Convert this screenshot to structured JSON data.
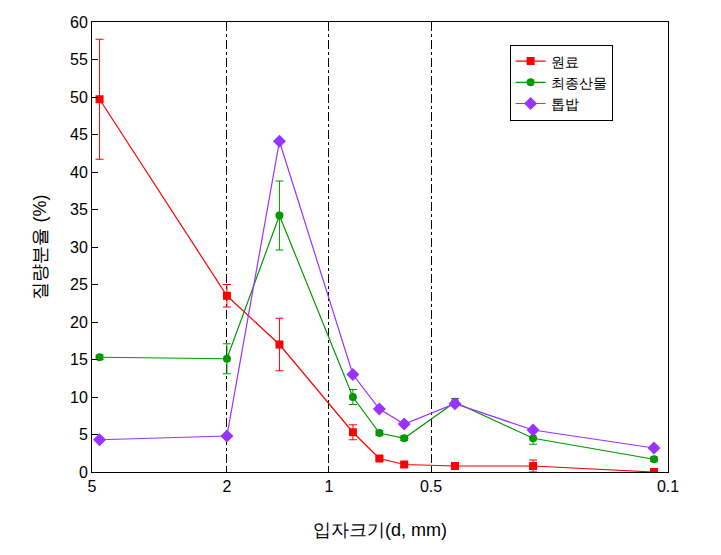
{
  "chart_data": {
    "type": "line",
    "x_label": "입자크기(d, mm)",
    "y_label": "질량분율 (%)",
    "log": "x",
    "x": [
      4.75,
      2.0,
      1.4,
      0.85,
      0.71,
      0.6,
      0.425,
      0.25,
      0.11
    ],
    "xlim": [
      5,
      0.1
    ],
    "xticks": [
      5,
      2,
      1,
      0.5,
      0.1
    ],
    "ylim": [
      0,
      60
    ],
    "yticks": [
      0,
      5,
      10,
      15,
      20,
      25,
      30,
      35,
      40,
      45,
      50,
      55,
      60
    ],
    "grid": "x",
    "legend": "top-right",
    "series": [
      {
        "name": "원료",
        "color": "#ff0000",
        "marker": "square",
        "values": [
          49.7,
          23.5,
          17.0,
          5.3,
          1.8,
          1.0,
          0.8,
          0.8,
          0.0
        ],
        "error": [
          8.0,
          1.5,
          3.5,
          1.0,
          0.2,
          0.2,
          0.2,
          0.8,
          0.1
        ]
      },
      {
        "name": "최종산물",
        "color": "#009900",
        "marker": "circle",
        "values": [
          15.3,
          15.1,
          34.2,
          10.0,
          5.2,
          4.5,
          9.3,
          4.5,
          1.7
        ],
        "error": [
          0.3,
          2.0,
          4.6,
          1.0,
          0.3,
          0.3,
          0.5,
          0.8,
          0.3
        ]
      },
      {
        "name": "톱밥",
        "color": "#9933ff",
        "marker": "diamond",
        "values": [
          4.3,
          4.8,
          44.1,
          13.0,
          8.4,
          6.4,
          9.1,
          5.6,
          3.2
        ]
      }
    ]
  }
}
